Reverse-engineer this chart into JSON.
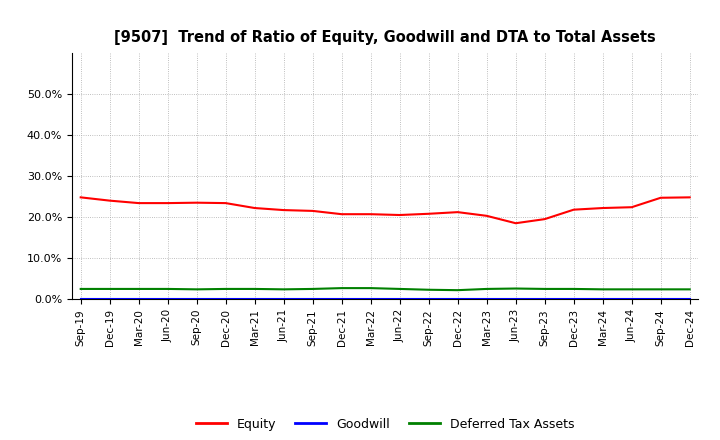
{
  "title": "[9507]  Trend of Ratio of Equity, Goodwill and DTA to Total Assets",
  "x_labels": [
    "Sep-19",
    "Dec-19",
    "Mar-20",
    "Jun-20",
    "Sep-20",
    "Dec-20",
    "Mar-21",
    "Jun-21",
    "Sep-21",
    "Dec-21",
    "Mar-22",
    "Jun-22",
    "Sep-22",
    "Dec-22",
    "Mar-23",
    "Jun-23",
    "Sep-23",
    "Dec-23",
    "Mar-24",
    "Jun-24",
    "Sep-24",
    "Dec-24"
  ],
  "equity": [
    24.8,
    24.0,
    23.4,
    23.4,
    23.5,
    23.4,
    22.2,
    21.7,
    21.5,
    20.7,
    20.7,
    20.5,
    20.8,
    21.2,
    20.3,
    18.5,
    19.5,
    21.8,
    22.2,
    22.4,
    24.7,
    24.8
  ],
  "goodwill": [
    0.0,
    0.0,
    0.0,
    0.0,
    0.0,
    0.0,
    0.0,
    0.0,
    0.0,
    0.0,
    0.0,
    0.0,
    0.0,
    0.0,
    0.0,
    0.0,
    0.0,
    0.0,
    0.0,
    0.0,
    0.0,
    0.0
  ],
  "dta": [
    2.5,
    2.5,
    2.5,
    2.5,
    2.4,
    2.5,
    2.5,
    2.4,
    2.5,
    2.7,
    2.7,
    2.5,
    2.3,
    2.2,
    2.5,
    2.6,
    2.5,
    2.5,
    2.4,
    2.4,
    2.4,
    2.4
  ],
  "equity_color": "#FF0000",
  "goodwill_color": "#0000FF",
  "dta_color": "#008000",
  "ylim": [
    0,
    60
  ],
  "yticks": [
    0,
    10,
    20,
    30,
    40,
    50
  ],
  "background_color": "#FFFFFF",
  "plot_bg_color": "#FFFFFF",
  "grid_color": "#AAAAAA",
  "legend_labels": [
    "Equity",
    "Goodwill",
    "Deferred Tax Assets"
  ]
}
